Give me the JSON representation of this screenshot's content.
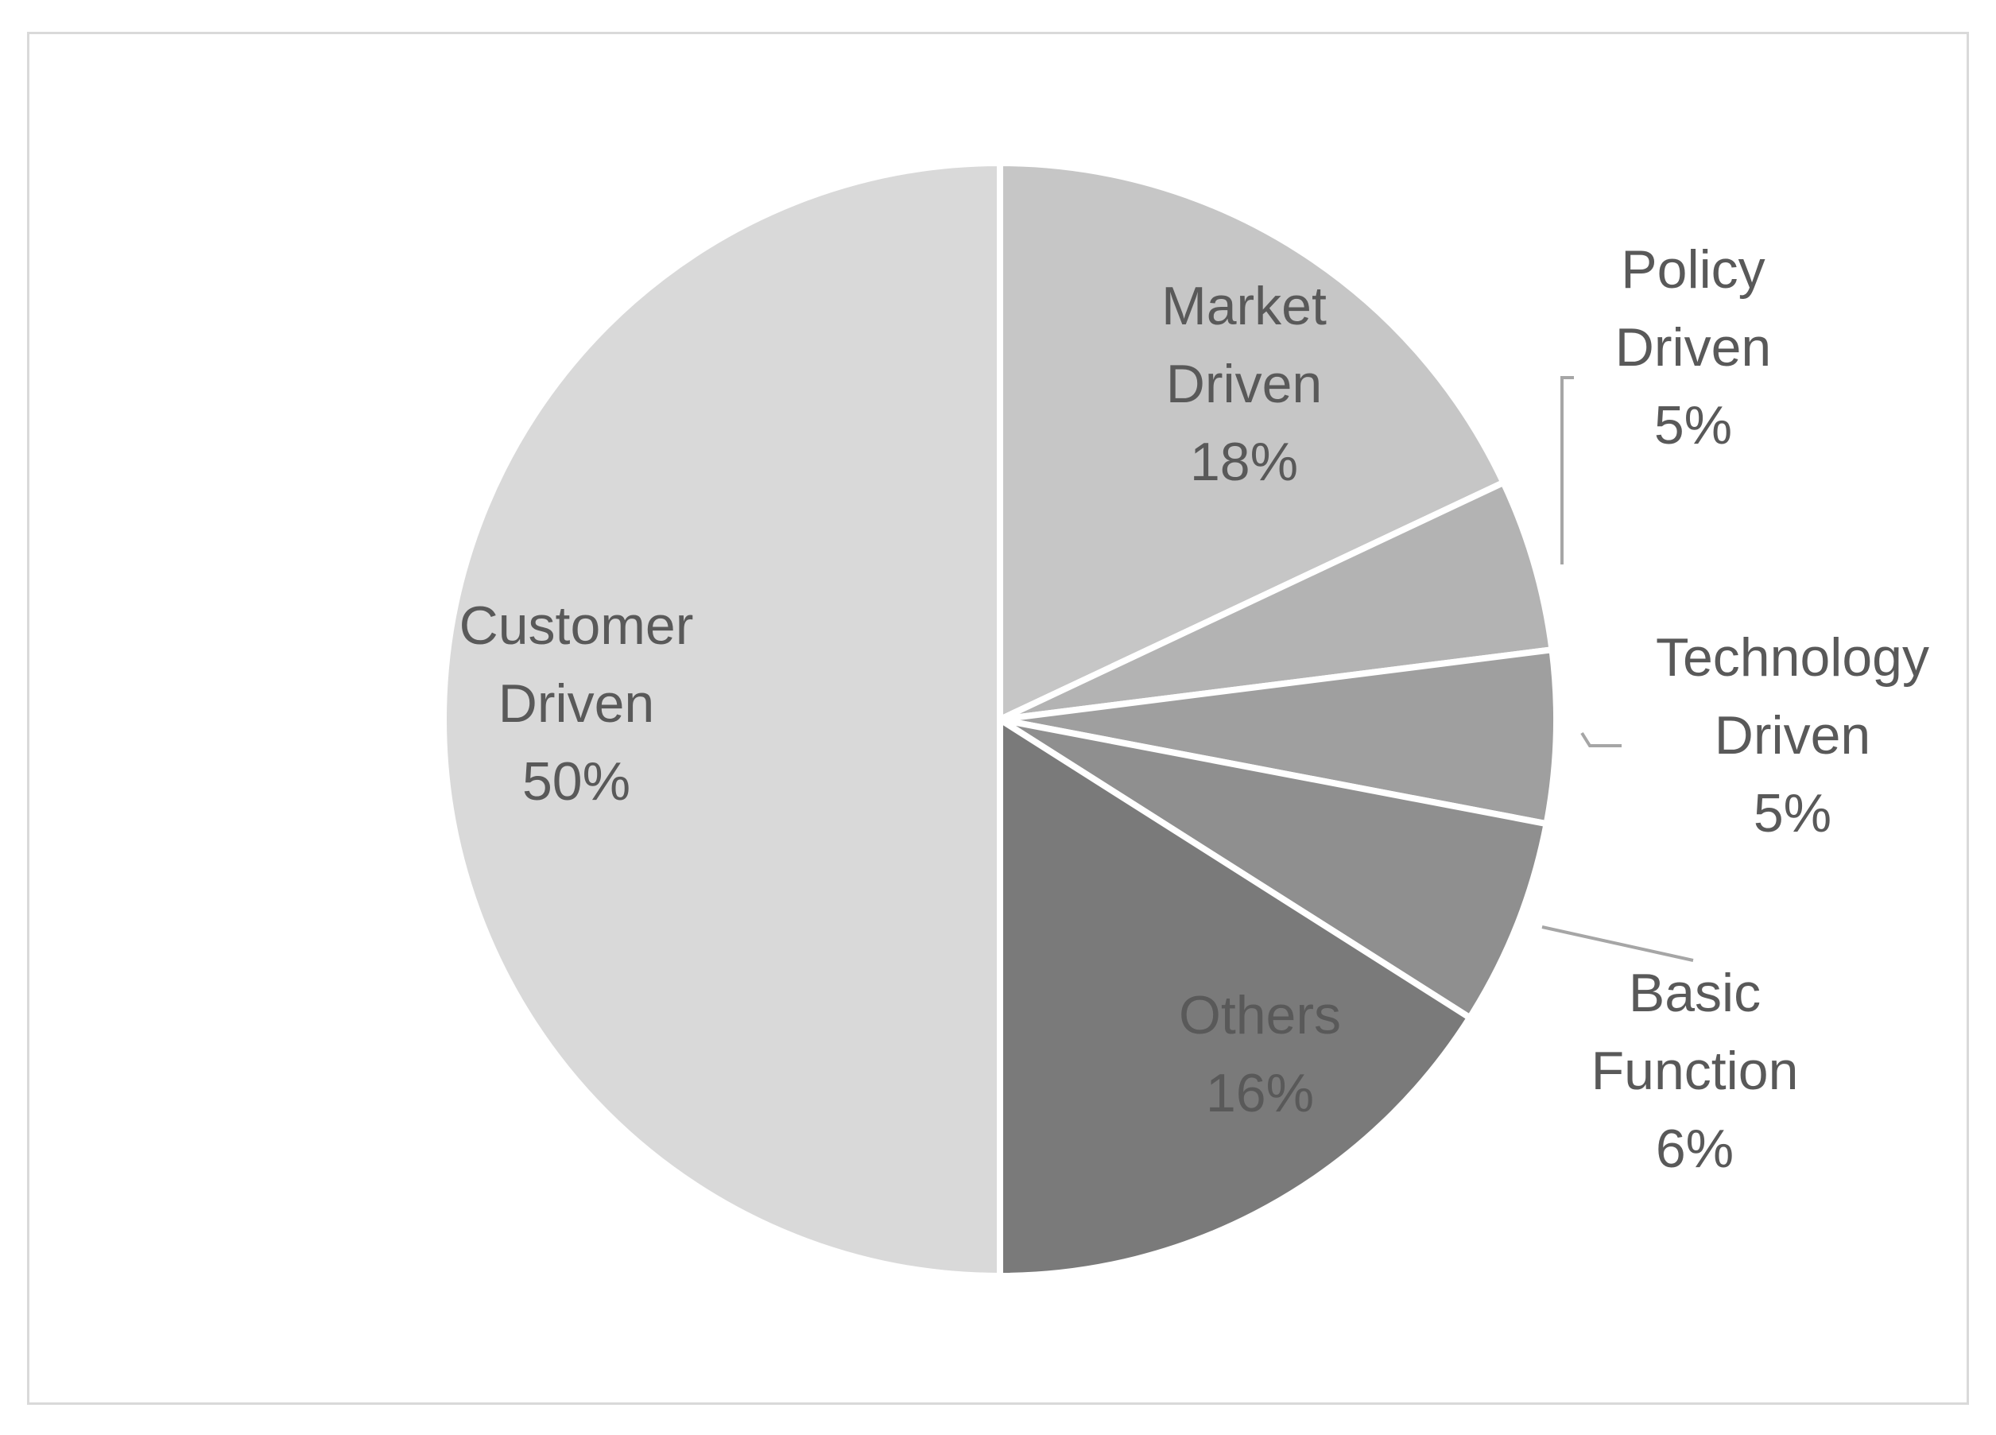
{
  "chart_data": {
    "type": "pie",
    "title": "",
    "start_angle_deg": 0,
    "direction": "clockwise",
    "slices": [
      {
        "label_lines": [
          "Market",
          "Driven"
        ],
        "name": "Market Driven",
        "value": 18,
        "value_label": "18%",
        "color": "#c6c6c6",
        "label_color": "#595959",
        "leader_line": false
      },
      {
        "label_lines": [
          "Policy",
          "Driven"
        ],
        "name": "Policy Driven",
        "value": 5,
        "value_label": "5%",
        "color": "#b3b3b3",
        "label_color": "#595959",
        "leader_line": true
      },
      {
        "label_lines": [
          "Technology",
          "Driven"
        ],
        "name": "Technology Driven",
        "value": 5,
        "value_label": "5%",
        "color": "#9f9f9f",
        "label_color": "#595959",
        "leader_line": true
      },
      {
        "label_lines": [
          "Basic",
          "Function"
        ],
        "name": "Basic Function",
        "value": 6,
        "value_label": "6%",
        "color": "#8f8f8f",
        "label_color": "#595959",
        "leader_line": true
      },
      {
        "label_lines": [
          "Others"
        ],
        "name": "Others",
        "value": 16,
        "value_label": "16%",
        "color": "#7a7a7a",
        "label_color": "#6b6b6b",
        "leader_line": false
      },
      {
        "label_lines": [
          "Customer",
          "Driven"
        ],
        "name": "Customer Driven",
        "value": 50,
        "value_label": "50%",
        "color": "#d9d9d9",
        "label_color": "#595959",
        "leader_line": false
      }
    ],
    "legend": "none",
    "data_labels": "category name and percentage"
  }
}
